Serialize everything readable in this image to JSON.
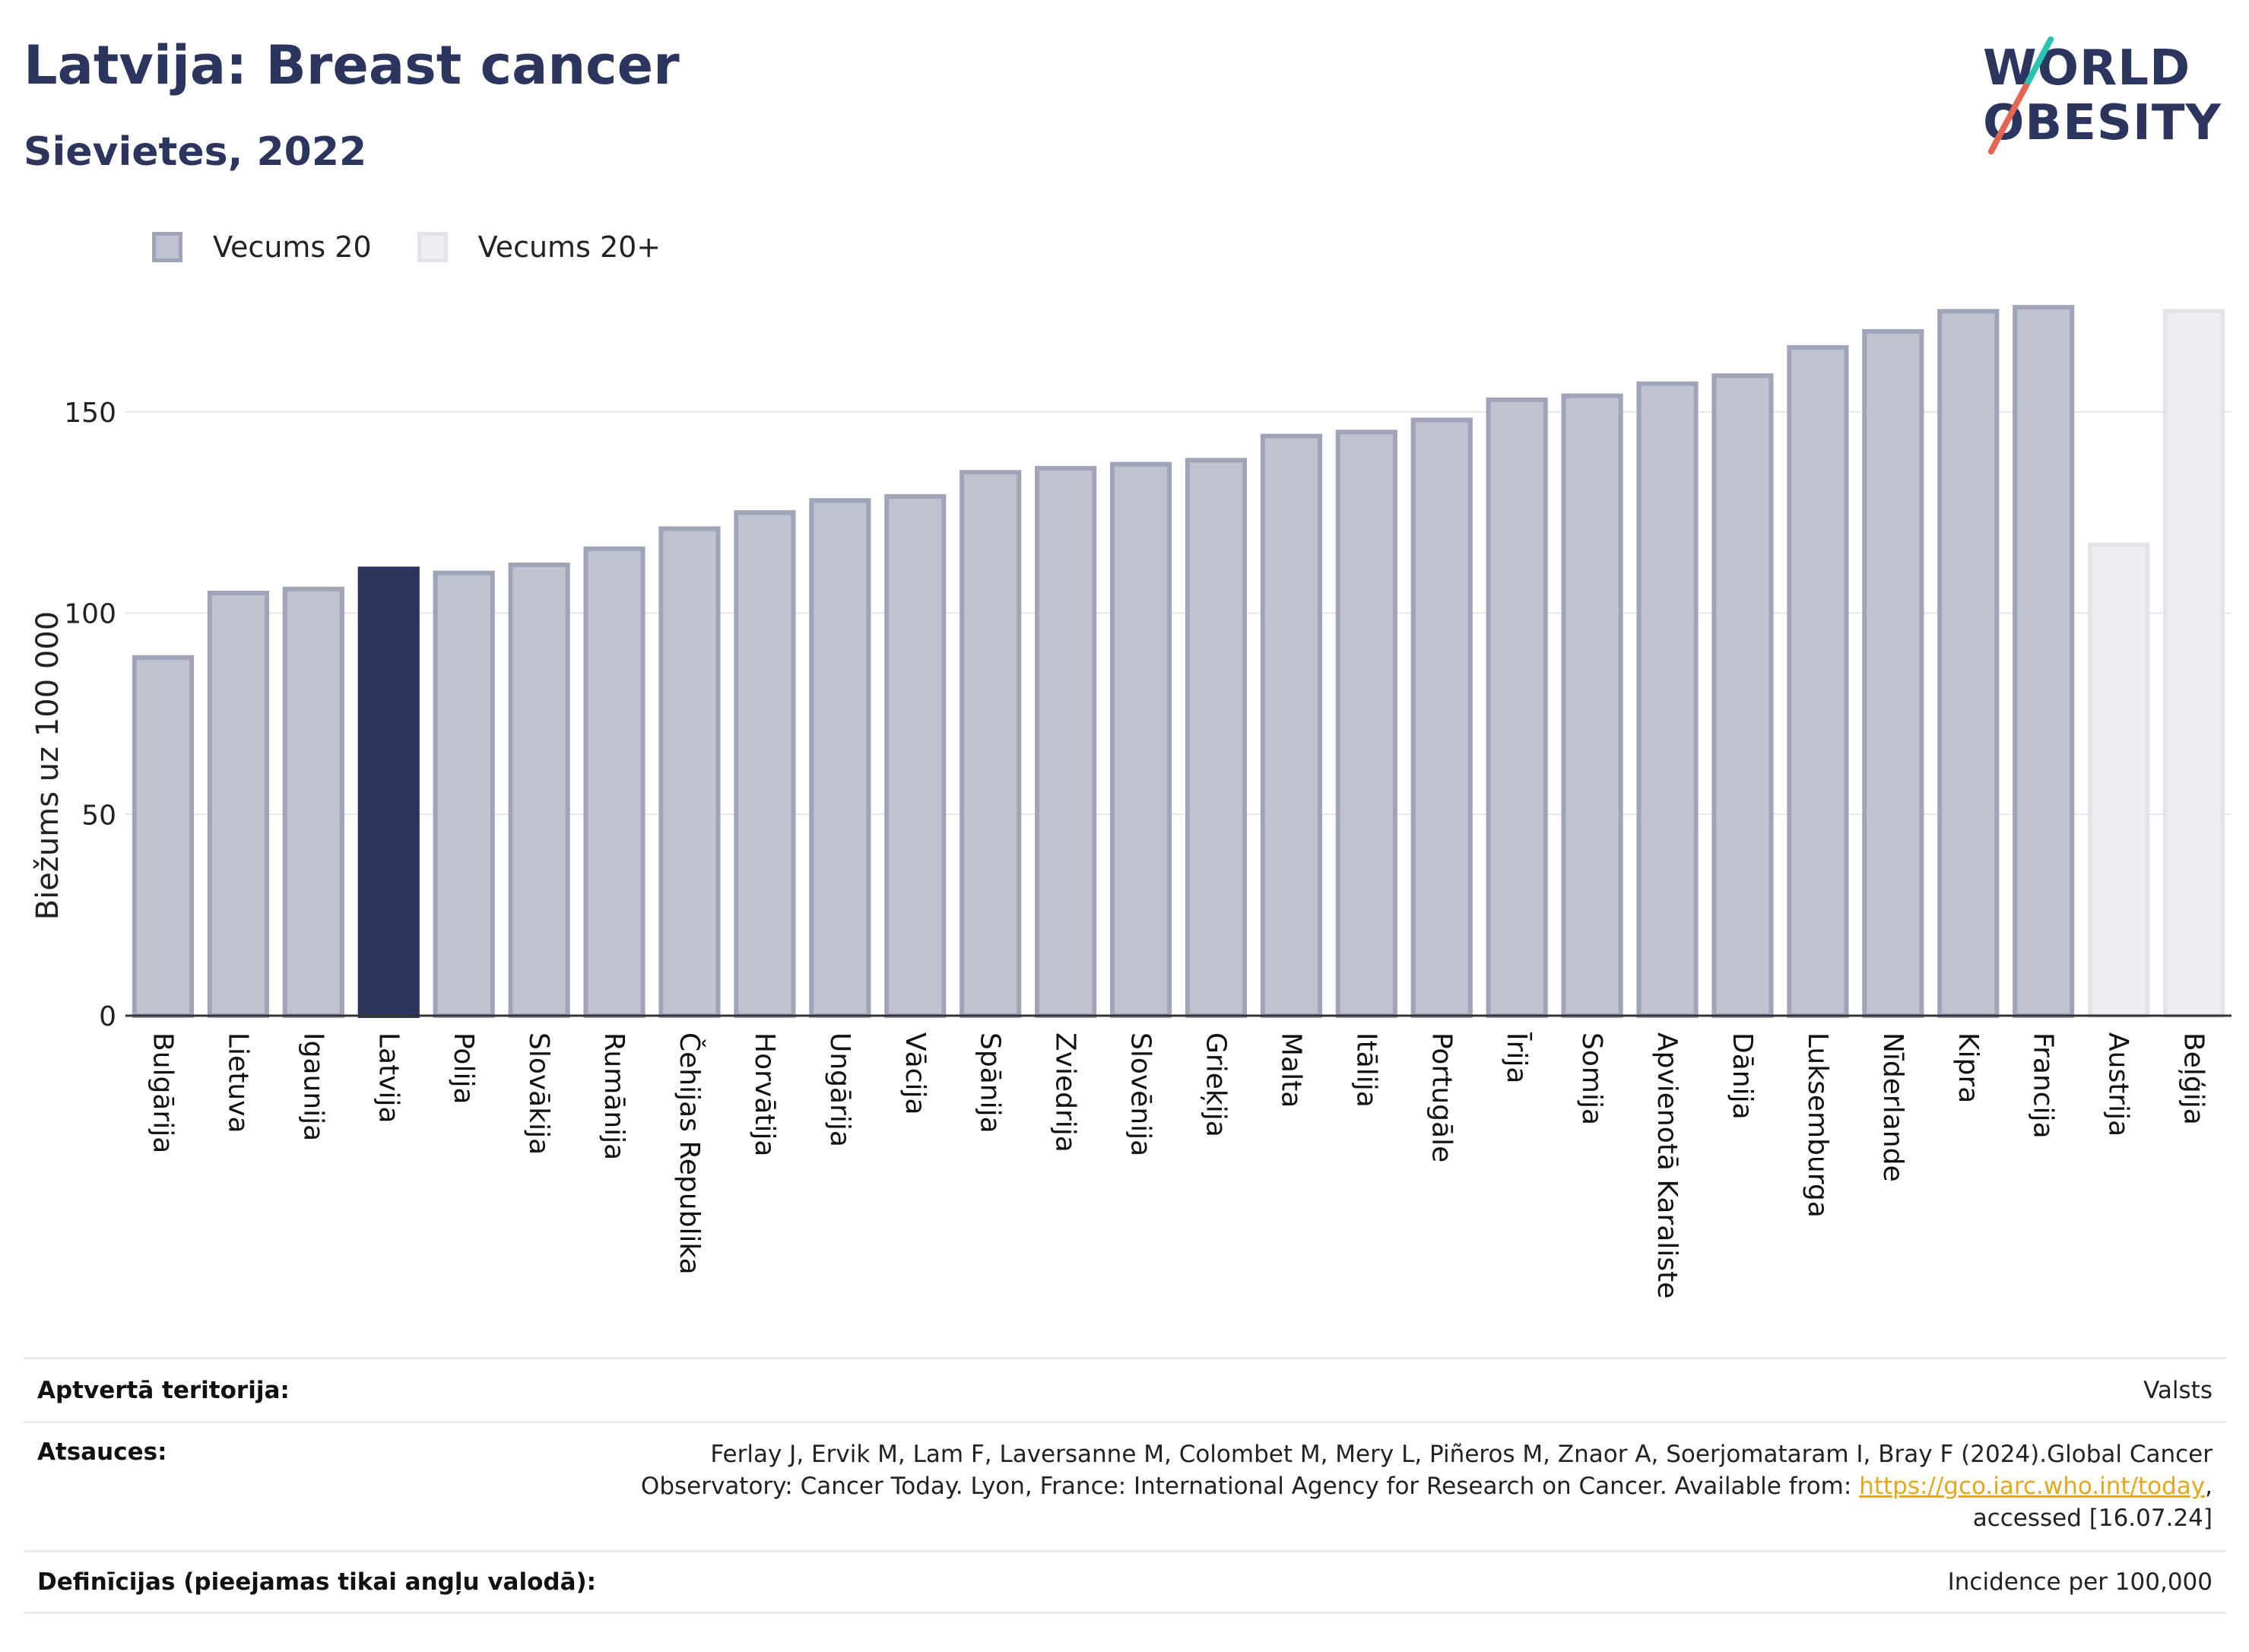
{
  "header": {
    "title": "Latvija: Breast cancer",
    "subtitle": "Sievietes, 2022"
  },
  "logo": {
    "line1": "WORLD",
    "line2": "OBESITY"
  },
  "legend": [
    {
      "label": "Vecums 20",
      "color": "#bfc2cf"
    },
    {
      "label": "Vecums 20+",
      "color": "#eeeff3"
    }
  ],
  "chart_data": {
    "type": "bar",
    "ylabel": "Biežums uz 100 000",
    "ylim": [
      0,
      190
    ],
    "yticks": [
      0,
      50,
      100,
      150
    ],
    "grid": true,
    "highlight_category": "Latvija",
    "highlight_color": "#2b355e",
    "categories": [
      "Bulgārija",
      "Lietuva",
      "Igaunija",
      "Latvija",
      "Polija",
      "Slovākija",
      "Rumānija",
      "Čehijas Republika",
      "Horvātija",
      "Ungārija",
      "Vācija",
      "Spānija",
      "Zviedrija",
      "Slovēnija",
      "Grieķija",
      "Malta",
      "Itālija",
      "Portugāle",
      "Īrija",
      "Somija",
      "Apvienotā Karaliste",
      "Dānija",
      "Luksemburga",
      "Nīderlande",
      "Kipra",
      "Francija",
      "Austrija",
      "Beļģija"
    ],
    "series": [
      {
        "name": "Vecums 20",
        "values": [
          89,
          105,
          106,
          111,
          110,
          112,
          116,
          121,
          125,
          128,
          129,
          135,
          136,
          137,
          138,
          144,
          145,
          148,
          153,
          154,
          157,
          159,
          166,
          170,
          175,
          176,
          null,
          null
        ]
      },
      {
        "name": "Vecums 20+",
        "values": [
          null,
          null,
          null,
          null,
          null,
          null,
          null,
          null,
          null,
          null,
          null,
          null,
          null,
          null,
          null,
          null,
          null,
          null,
          null,
          null,
          null,
          null,
          null,
          null,
          null,
          null,
          117,
          175
        ]
      }
    ]
  },
  "footer": {
    "territory_label": "Aptvertā teritorija:",
    "territory_value": "Valsts",
    "references_label": "Atsauces:",
    "references_line1": "Ferlay J, Ervik M, Lam F, Laversanne M, Colombet M, Mery L, Piñeros M, Znaor A, Soerjomataram I, Bray F (2024).Global Cancer",
    "references_line2": "Observatory: Cancer Today. Lyon, France: International Agency for Research on Cancer. Available from:",
    "references_link": "https://gco.iarc.who.int/today",
    "references_line2_end": ",",
    "references_line3": "accessed [16.07.24]",
    "definitions_label": "Definīcijas (pieejamas tikai angļu valodā):",
    "definitions_value": "Incidence per 100,000"
  }
}
